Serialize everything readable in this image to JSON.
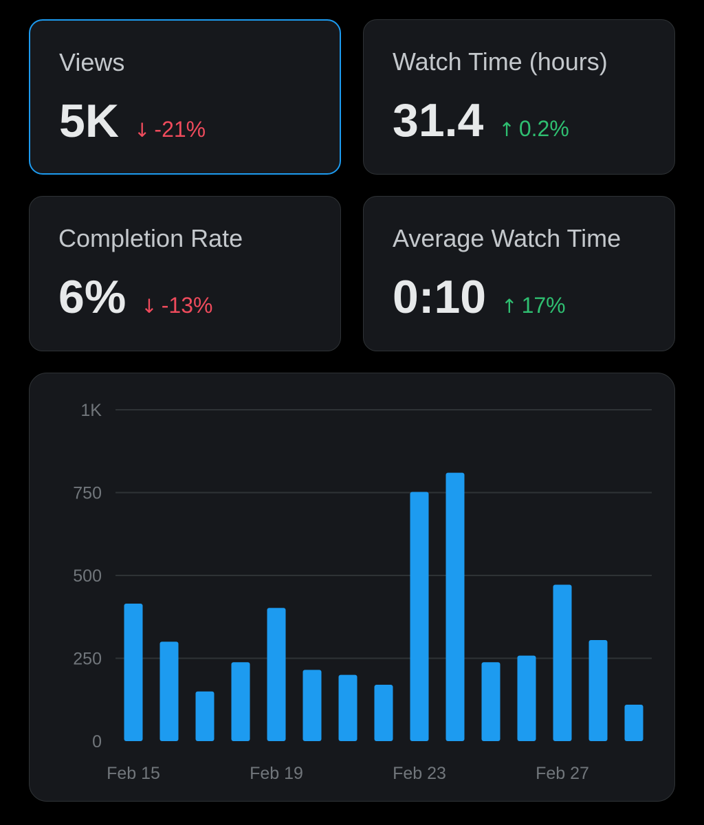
{
  "cards": [
    {
      "title": "Views",
      "value": "5K",
      "delta_arrow": "↓",
      "delta": "-21%",
      "trend": "down",
      "selected": true
    },
    {
      "title": "Watch Time (hours)",
      "value": "31.4",
      "delta_arrow": "↑",
      "delta": "0.2%",
      "trend": "up",
      "selected": false
    },
    {
      "title": "Completion Rate",
      "value": "6%",
      "delta_arrow": "↓",
      "delta": "-13%",
      "trend": "down",
      "selected": false
    },
    {
      "title": "Average Watch Time",
      "value": "0:10",
      "delta_arrow": "↑",
      "delta": "17%",
      "trend": "up",
      "selected": false
    }
  ],
  "colors": {
    "bar": "#1d9bf0",
    "up": "#2fbf71",
    "down": "#ef4b5c",
    "selected_border": "#1d9bf0"
  },
  "chart_data": {
    "type": "bar",
    "categories": [
      "Feb 15",
      "Feb 16",
      "Feb 17",
      "Feb 18",
      "Feb 19",
      "Feb 20",
      "Feb 21",
      "Feb 22",
      "Feb 23",
      "Feb 24",
      "Feb 25",
      "Feb 26",
      "Feb 27",
      "Feb 28",
      "Feb 29"
    ],
    "values": [
      415,
      300,
      150,
      238,
      402,
      215,
      200,
      170,
      752,
      810,
      238,
      258,
      472,
      305,
      110
    ],
    "x_tick_labels": [
      "Feb 15",
      "Feb 19",
      "Feb 23",
      "Feb 27"
    ],
    "y_ticks": [
      0,
      250,
      500,
      750,
      1000
    ],
    "y_tick_labels": [
      "0",
      "250",
      "500",
      "750",
      "1K"
    ],
    "ylim": [
      0,
      1000
    ],
    "grid": true,
    "title": "",
    "xlabel": "",
    "ylabel": ""
  }
}
